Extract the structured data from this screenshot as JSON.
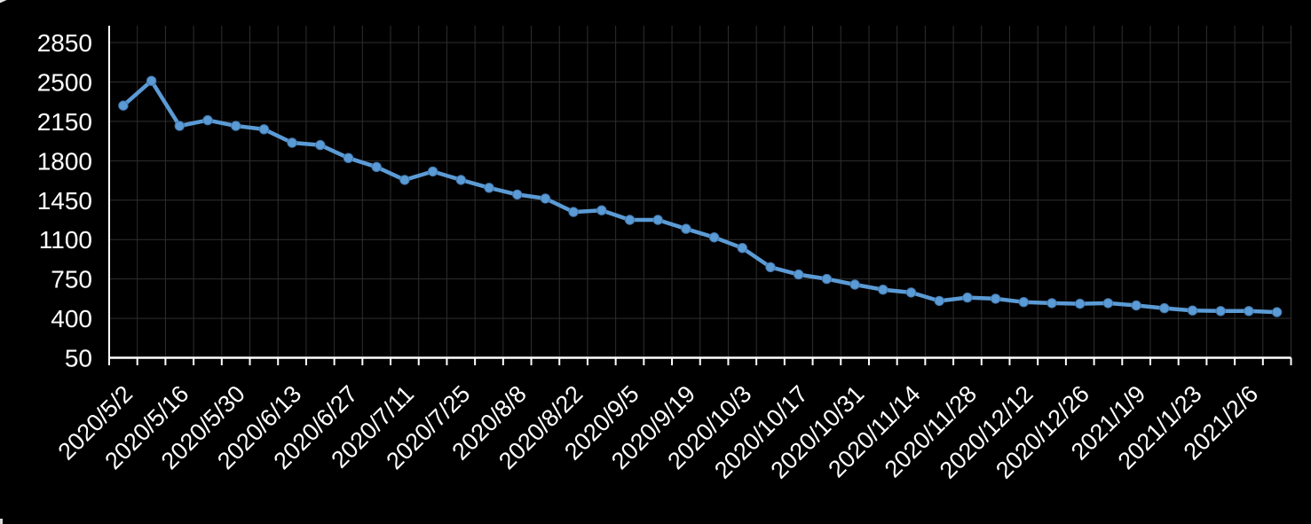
{
  "chart_data": {
    "type": "line",
    "title": "",
    "x": [
      "2020/5/2",
      "2020/5/9",
      "2020/5/16",
      "2020/5/23",
      "2020/5/30",
      "2020/6/6",
      "2020/6/13",
      "2020/6/20",
      "2020/6/27",
      "2020/7/4",
      "2020/7/11",
      "2020/7/18",
      "2020/7/25",
      "2020/8/1",
      "2020/8/8",
      "2020/8/15",
      "2020/8/22",
      "2020/8/29",
      "2020/9/5",
      "2020/9/12",
      "2020/9/19",
      "2020/9/26",
      "2020/10/3",
      "2020/10/10",
      "2020/10/17",
      "2020/10/24",
      "2020/10/31",
      "2020/11/7",
      "2020/11/14",
      "2020/11/21",
      "2020/11/28",
      "2020/12/5",
      "2020/12/12",
      "2020/12/19",
      "2020/12/26",
      "2021/1/2",
      "2021/1/9",
      "2021/1/16",
      "2021/1/23",
      "2021/1/30",
      "2021/2/6",
      "2021/2/13"
    ],
    "values": [
      2290,
      2510,
      2110,
      2160,
      2110,
      2080,
      1960,
      1940,
      1825,
      1745,
      1630,
      1705,
      1630,
      1560,
      1500,
      1465,
      1345,
      1360,
      1275,
      1275,
      1195,
      1120,
      1025,
      855,
      790,
      750,
      700,
      655,
      630,
      555,
      585,
      575,
      545,
      535,
      530,
      535,
      515,
      490,
      470,
      465,
      465,
      455
    ],
    "x_tick_labels": [
      "2020/5/2",
      "2020/5/16",
      "2020/5/30",
      "2020/6/13",
      "2020/6/27",
      "2020/7/11",
      "2020/7/25",
      "2020/8/8",
      "2020/8/22",
      "2020/9/5",
      "2020/9/19",
      "2020/10/3",
      "2020/10/17",
      "2020/10/31",
      "2020/11/14",
      "2020/11/28",
      "2020/12/12",
      "2020/12/26",
      "2021/1/9",
      "2021/1/23",
      "2021/2/6"
    ],
    "x_label_every": 2,
    "x_label_rotation_deg": 45,
    "y_ticks": [
      50,
      400,
      750,
      1100,
      1450,
      1800,
      2150,
      2500,
      2850
    ],
    "ylim": [
      50,
      3000
    ],
    "xlabel": "",
    "ylabel": "",
    "grid": true,
    "legend": false,
    "colors": {
      "background": "#000000",
      "line": "#5B9BD5",
      "marker_fill": "#5B9BD5",
      "marker_edge": "#4176AD",
      "grid": "#2E2E2E",
      "axis": "#FFFFFF",
      "text": "#FFFFFF"
    }
  }
}
